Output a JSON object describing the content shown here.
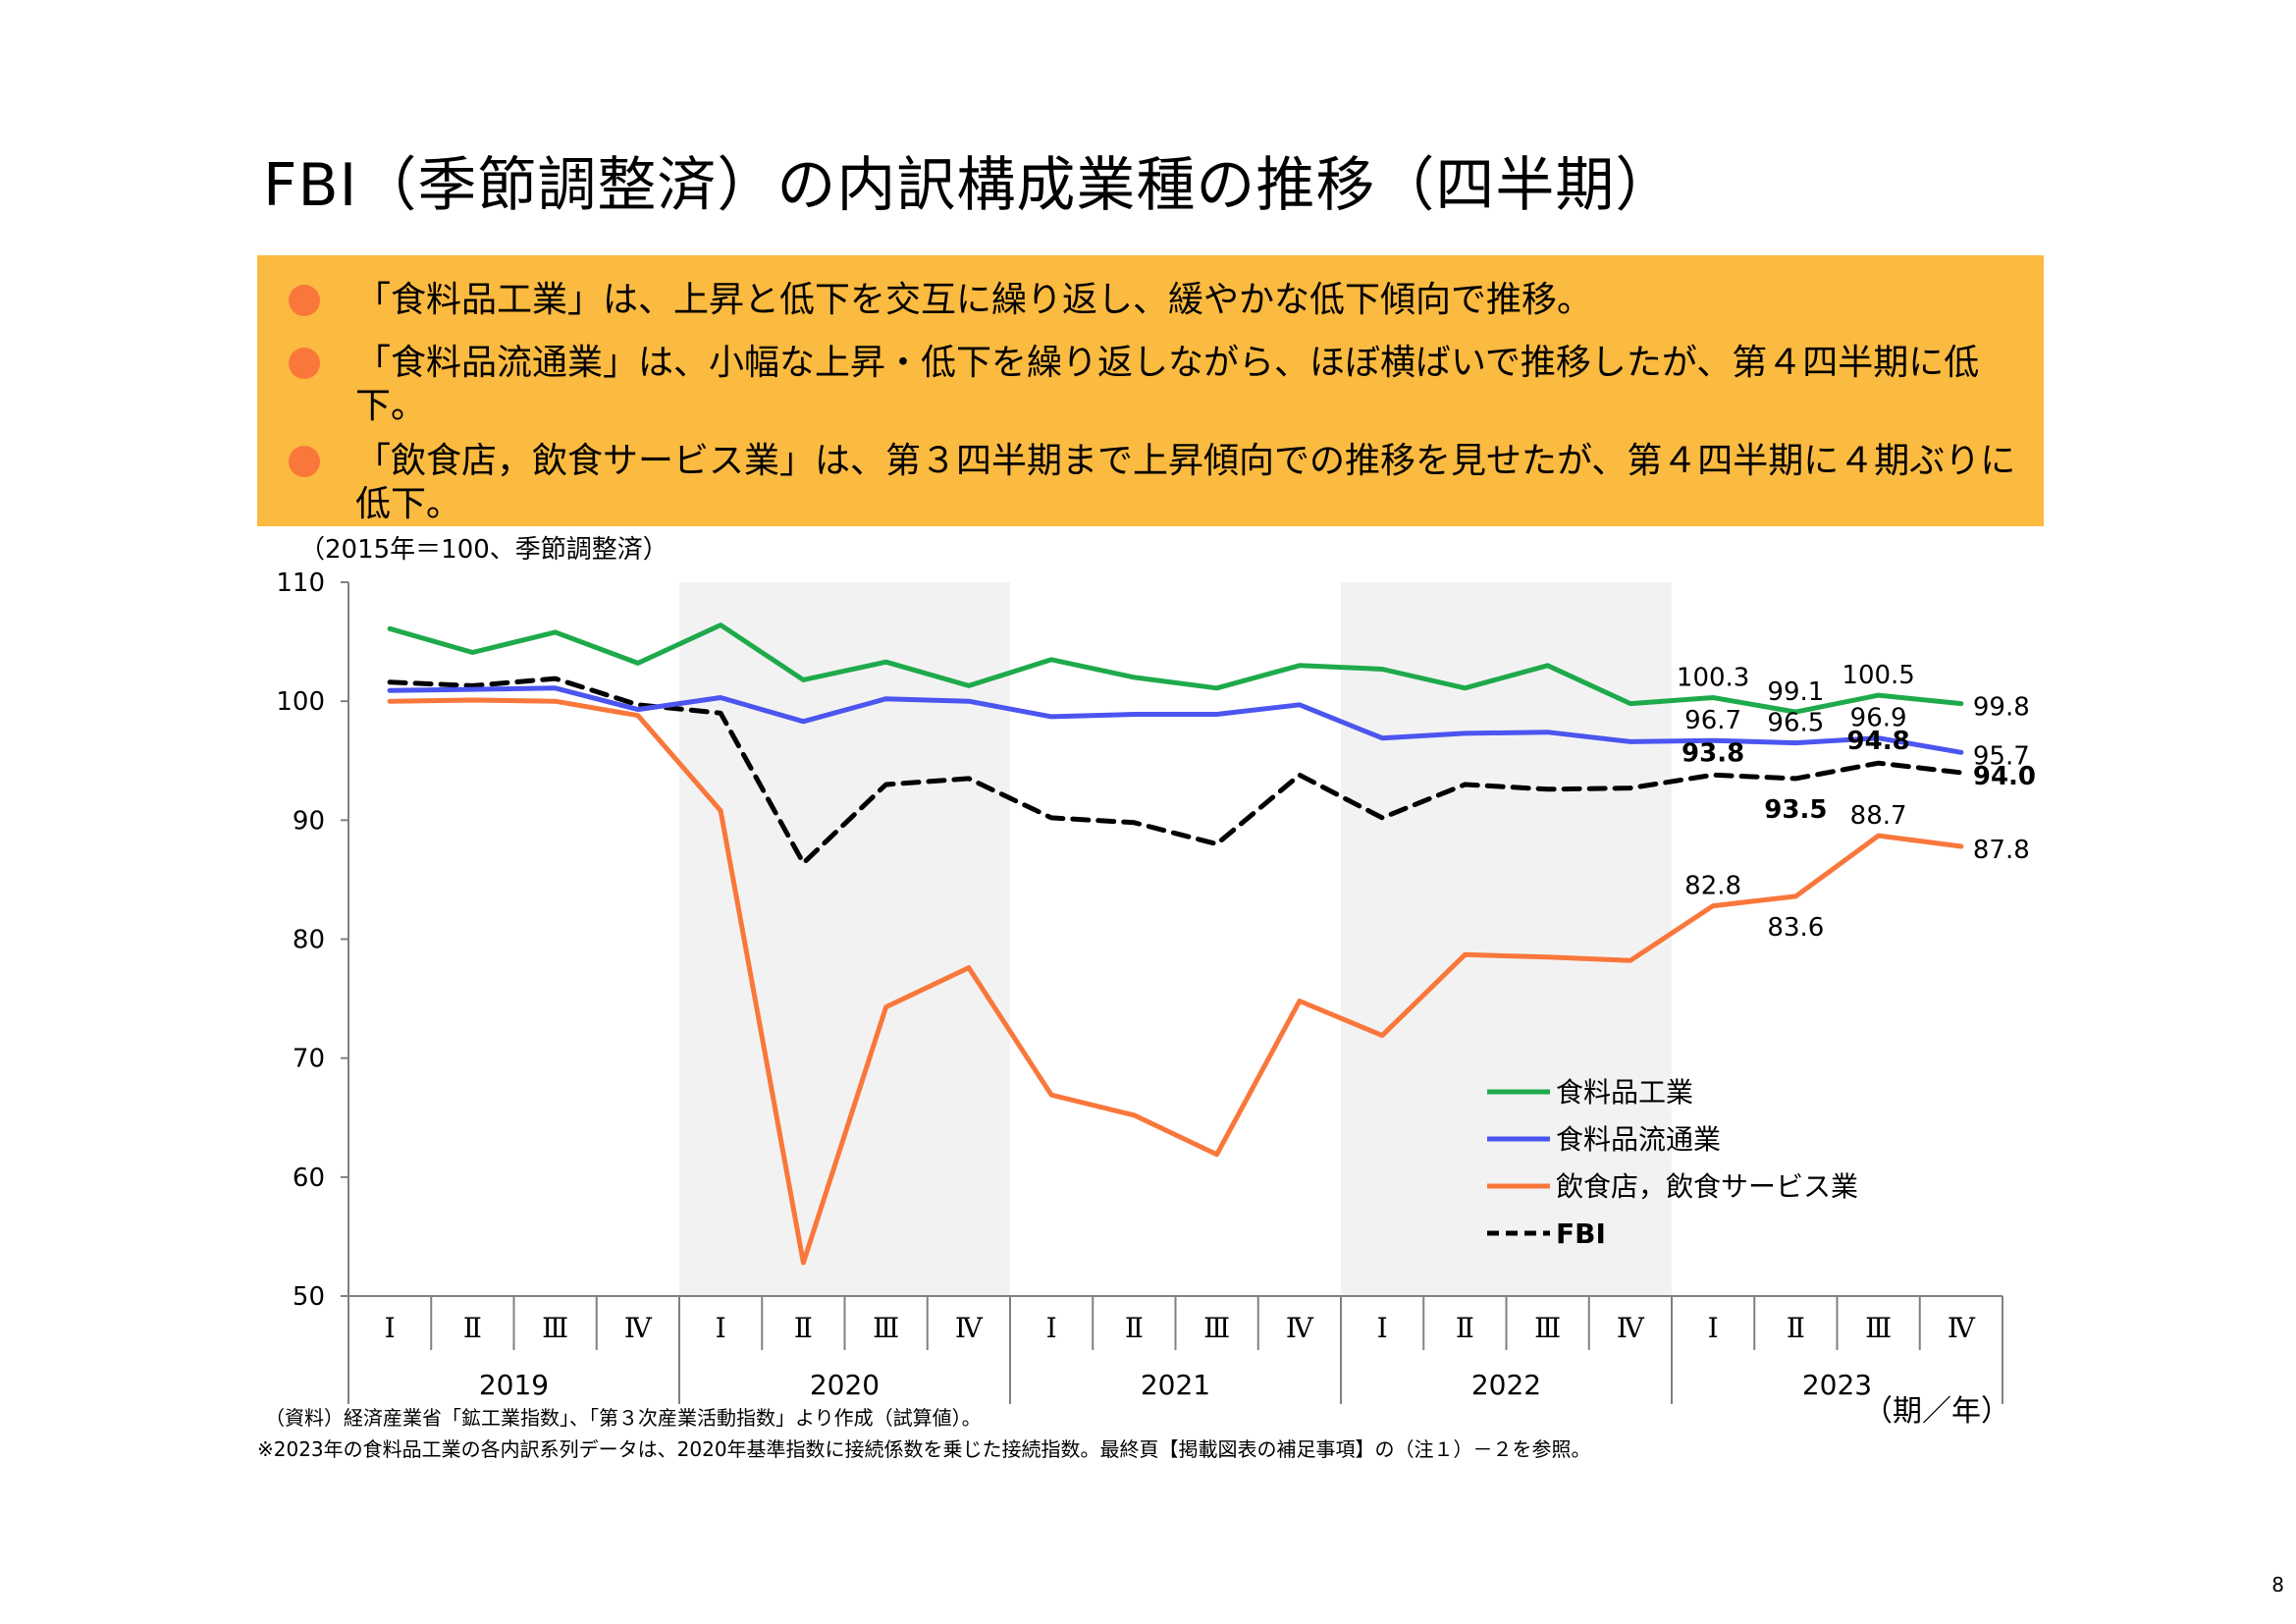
{
  "page": {
    "title": "FBI（季節調整済）の内訳構成業種の推移（四半期）",
    "bullets": [
      "「食料品工業」は、上昇と低下を交互に繰り返し、緩やかな低下傾向で推移。",
      "「食料品流通業」は、小幅な上昇・低下を繰り返しながら、ほぼ横ばいで推移したが、第４四半期に低下。",
      "「飲食店，飲食サービス業」は、第３四半期まで上昇傾向での推移を見せたが、第４四半期に４期ぶりに低下。"
    ],
    "source_note": "（資料）経済産業省「鉱工業指数」、「第３次産業活動指数」より作成（試算値）。",
    "footnote": "※2023年の食料品工業の各内訳系列データは、2020年基準指数に接続係数を乗じた接続指数。最終頁【掲載図表の補足事項】の（注１）－２を参照。",
    "page_number": "8",
    "colors": {
      "callout_bg": "#FBBA40",
      "bullet_dot": "#F9773B"
    }
  },
  "chart_data": {
    "type": "line",
    "ylabel": "（2015年＝100、季節調整済）",
    "xlabel": "（期／年）",
    "ylim": [
      50,
      110
    ],
    "yticks": [
      50,
      60,
      70,
      80,
      90,
      100,
      110
    ],
    "quarters": [
      "Ⅰ",
      "Ⅱ",
      "Ⅲ",
      "Ⅳ",
      "Ⅰ",
      "Ⅱ",
      "Ⅲ",
      "Ⅳ",
      "Ⅰ",
      "Ⅱ",
      "Ⅲ",
      "Ⅳ",
      "Ⅰ",
      "Ⅱ",
      "Ⅲ",
      "Ⅳ",
      "Ⅰ",
      "Ⅱ",
      "Ⅲ",
      "Ⅳ"
    ],
    "years": [
      "2019",
      "2020",
      "2021",
      "2022",
      "2023"
    ],
    "shaded_years": [
      "2020",
      "2022"
    ],
    "legend_position": "bottom-right",
    "series": [
      {
        "name": "食料品工業",
        "color": "#1EAA4B",
        "dashed": false,
        "bold_labels": false,
        "values": [
          106.1,
          104.1,
          105.8,
          103.2,
          106.4,
          101.8,
          103.3,
          101.3,
          103.5,
          102.0,
          101.1,
          103.0,
          102.7,
          101.1,
          103.0,
          99.8,
          100.3,
          99.1,
          100.5,
          99.8
        ],
        "labels": [
          null,
          null,
          null,
          null,
          null,
          null,
          null,
          null,
          null,
          null,
          null,
          null,
          null,
          null,
          null,
          null,
          "100.3",
          "99.1",
          "100.5",
          "99.8"
        ]
      },
      {
        "name": "食料品流通業",
        "color": "#4B55F0",
        "dashed": false,
        "bold_labels": false,
        "values": [
          100.9,
          101.0,
          101.1,
          99.3,
          100.3,
          98.3,
          100.2,
          100.0,
          98.7,
          98.9,
          98.9,
          99.7,
          96.9,
          97.3,
          97.4,
          96.6,
          96.7,
          96.5,
          96.9,
          95.7
        ],
        "labels": [
          null,
          null,
          null,
          null,
          null,
          null,
          null,
          null,
          null,
          null,
          null,
          null,
          null,
          null,
          null,
          null,
          "96.7",
          "96.5",
          "96.9",
          "95.7"
        ]
      },
      {
        "name": "飲食店，飲食サービス業",
        "color": "#F9773B",
        "dashed": false,
        "bold_labels": false,
        "values": [
          100.0,
          100.1,
          100.0,
          98.8,
          90.8,
          52.8,
          74.3,
          77.6,
          66.9,
          65.2,
          61.9,
          74.8,
          71.9,
          78.7,
          78.5,
          78.2,
          82.8,
          83.6,
          88.7,
          87.8
        ],
        "labels": [
          null,
          null,
          null,
          null,
          null,
          null,
          null,
          null,
          null,
          null,
          null,
          null,
          null,
          null,
          null,
          null,
          "82.8",
          "83.6",
          "88.7",
          "87.8"
        ]
      },
      {
        "name": "FBI",
        "color": "#000000",
        "dashed": true,
        "bold_labels": true,
        "values": [
          101.6,
          101.3,
          101.9,
          99.7,
          99.0,
          86.4,
          93.0,
          93.5,
          90.2,
          89.8,
          88.0,
          93.8,
          90.2,
          93.0,
          92.6,
          92.7,
          93.8,
          93.5,
          94.8,
          94.0
        ],
        "labels": [
          null,
          null,
          null,
          null,
          null,
          null,
          null,
          null,
          null,
          null,
          null,
          null,
          null,
          null,
          null,
          null,
          "93.8",
          "93.5",
          "94.8",
          "94.0"
        ]
      }
    ]
  }
}
